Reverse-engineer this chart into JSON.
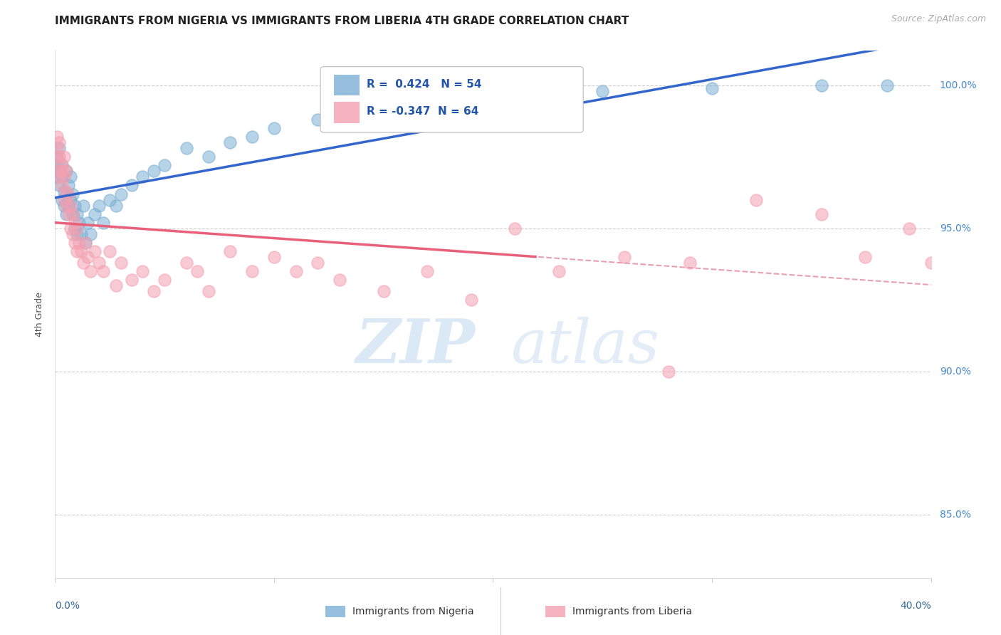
{
  "title": "IMMIGRANTS FROM NIGERIA VS IMMIGRANTS FROM LIBERIA 4TH GRADE CORRELATION CHART",
  "source": "Source: ZipAtlas.com",
  "ylabel": "4th Grade",
  "xmin": 0.0,
  "xmax": 0.4,
  "ymin": 0.828,
  "ymax": 1.012,
  "nigeria_R": 0.424,
  "nigeria_N": 54,
  "liberia_R": -0.347,
  "liberia_N": 64,
  "nigeria_color": "#7BAFD4",
  "liberia_color": "#F4A0B0",
  "nigeria_line_color": "#3366CC",
  "liberia_line_color": "#E8607A",
  "liberia_dash_color": "#E8A0B0",
  "watermark_zip": "ZIP",
  "watermark_atlas": "atlas",
  "legend_nigeria": "Immigrants from Nigeria",
  "legend_liberia": "Immigrants from Liberia",
  "nigeria_scatter_x": [
    0.001,
    0.001,
    0.001,
    0.002,
    0.002,
    0.002,
    0.003,
    0.003,
    0.003,
    0.004,
    0.004,
    0.005,
    0.005,
    0.005,
    0.006,
    0.006,
    0.007,
    0.007,
    0.008,
    0.008,
    0.009,
    0.009,
    0.01,
    0.01,
    0.011,
    0.012,
    0.013,
    0.014,
    0.015,
    0.016,
    0.018,
    0.02,
    0.022,
    0.025,
    0.028,
    0.03,
    0.035,
    0.04,
    0.045,
    0.05,
    0.06,
    0.07,
    0.08,
    0.09,
    0.1,
    0.12,
    0.14,
    0.16,
    0.19,
    0.22,
    0.25,
    0.3,
    0.35,
    0.38
  ],
  "nigeria_scatter_y": [
    0.972,
    0.968,
    0.975,
    0.97,
    0.965,
    0.978,
    0.96,
    0.968,
    0.972,
    0.958,
    0.963,
    0.955,
    0.962,
    0.97,
    0.958,
    0.965,
    0.96,
    0.968,
    0.955,
    0.962,
    0.95,
    0.958,
    0.948,
    0.955,
    0.952,
    0.948,
    0.958,
    0.945,
    0.952,
    0.948,
    0.955,
    0.958,
    0.952,
    0.96,
    0.958,
    0.962,
    0.965,
    0.968,
    0.97,
    0.972,
    0.978,
    0.975,
    0.98,
    0.982,
    0.985,
    0.988,
    0.99,
    0.992,
    0.994,
    0.996,
    0.998,
    0.999,
    1.0,
    1.0
  ],
  "liberia_scatter_x": [
    0.001,
    0.001,
    0.001,
    0.001,
    0.002,
    0.002,
    0.002,
    0.003,
    0.003,
    0.003,
    0.004,
    0.004,
    0.004,
    0.005,
    0.005,
    0.005,
    0.006,
    0.006,
    0.007,
    0.007,
    0.008,
    0.008,
    0.009,
    0.009,
    0.01,
    0.01,
    0.011,
    0.012,
    0.013,
    0.014,
    0.015,
    0.016,
    0.018,
    0.02,
    0.022,
    0.025,
    0.028,
    0.03,
    0.035,
    0.04,
    0.045,
    0.05,
    0.06,
    0.065,
    0.07,
    0.08,
    0.09,
    0.1,
    0.11,
    0.12,
    0.13,
    0.15,
    0.17,
    0.19,
    0.21,
    0.23,
    0.26,
    0.29,
    0.32,
    0.35,
    0.37,
    0.39,
    0.4,
    0.28
  ],
  "liberia_scatter_y": [
    0.975,
    0.97,
    0.978,
    0.982,
    0.968,
    0.975,
    0.98,
    0.965,
    0.97,
    0.972,
    0.96,
    0.968,
    0.975,
    0.958,
    0.963,
    0.97,
    0.955,
    0.962,
    0.95,
    0.958,
    0.948,
    0.955,
    0.945,
    0.952,
    0.942,
    0.95,
    0.945,
    0.942,
    0.938,
    0.945,
    0.94,
    0.935,
    0.942,
    0.938,
    0.935,
    0.942,
    0.93,
    0.938,
    0.932,
    0.935,
    0.928,
    0.932,
    0.938,
    0.935,
    0.928,
    0.942,
    0.935,
    0.94,
    0.935,
    0.938,
    0.932,
    0.928,
    0.935,
    0.925,
    0.95,
    0.935,
    0.94,
    0.938,
    0.96,
    0.955,
    0.94,
    0.95,
    0.938,
    0.9
  ]
}
